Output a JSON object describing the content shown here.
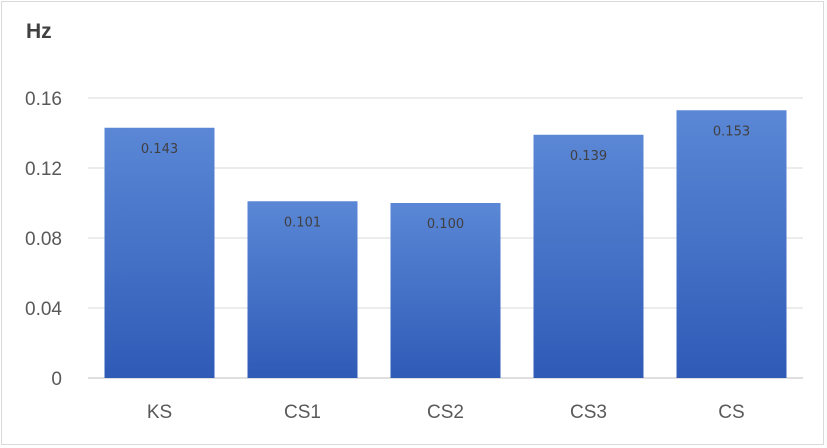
{
  "chart_data": {
    "type": "bar",
    "ylabel": "Hz",
    "categories": [
      "KS",
      "CS1",
      "CS2",
      "CS3",
      "CS"
    ],
    "values": [
      0.143,
      0.101,
      0.1,
      0.139,
      0.153
    ],
    "data_labels": [
      "0.143",
      "0.101",
      "0.100",
      "0.139",
      "0.153"
    ],
    "ylim": [
      0,
      0.16
    ],
    "yticks": [
      0,
      0.04,
      0.08,
      0.12,
      0.16
    ],
    "ytick_labels": [
      "0",
      "0.04",
      "0.08",
      "0.12",
      "0.16"
    ],
    "grid": true,
    "legend": "none",
    "colors": {
      "bar_top": "#5b87d6",
      "bar_bottom": "#2f5bb7",
      "grid": "#d9d9d9",
      "axis": "#bfbfbf"
    }
  }
}
